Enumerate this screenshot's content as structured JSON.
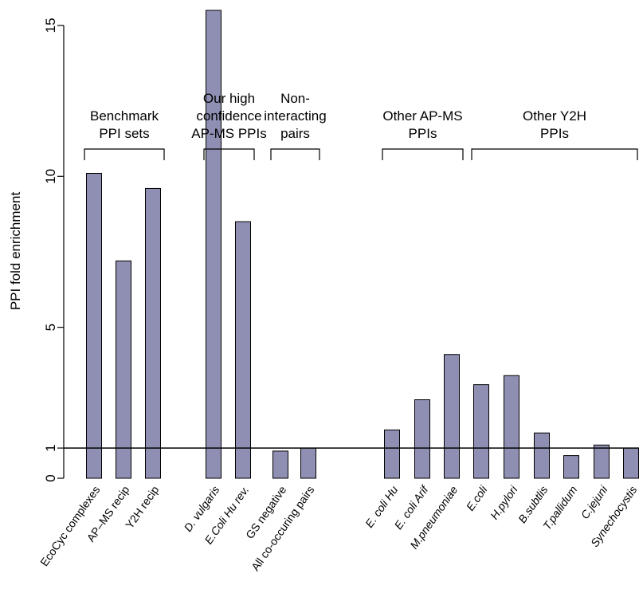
{
  "chart_data": {
    "type": "bar",
    "ylabel": "PPI fold enrichment",
    "ylim": [
      0,
      15.5
    ],
    "yticks": [
      0,
      1,
      5,
      10,
      15
    ],
    "reference_line": 1,
    "bar_color": "#8f8fb3",
    "categories": [
      {
        "label": "EcoCyc complexes",
        "value": 10.1,
        "italic": false
      },
      {
        "label": "AP–MS recip",
        "value": 7.2,
        "italic": false
      },
      {
        "label": "Y2H recip",
        "value": 9.6,
        "italic": false
      },
      {
        "label": "D. vulgaris",
        "value": 15.5,
        "italic": true
      },
      {
        "label": "E.Coli Hu rev.",
        "value": 8.5,
        "italic": true
      },
      {
        "label": "GS negative",
        "value": 0.9,
        "italic": false
      },
      {
        "label": "All co-occuring pairs",
        "value": 1.0,
        "italic": false
      },
      {
        "label": "E. coli Hu",
        "value": 1.6,
        "italic": true
      },
      {
        "label": "E. coli Arif",
        "value": 2.6,
        "italic": true
      },
      {
        "label": "M.pneumoniae",
        "value": 4.1,
        "italic": true
      },
      {
        "label": "E.coli",
        "value": 3.1,
        "italic": true
      },
      {
        "label": "H.pylori",
        "value": 3.4,
        "italic": true
      },
      {
        "label": "B.subtlis",
        "value": 1.5,
        "italic": true
      },
      {
        "label": "T.pallidum",
        "value": 0.75,
        "italic": true
      },
      {
        "label": "C.jejuni",
        "value": 1.1,
        "italic": true
      },
      {
        "label": "Synechocystis",
        "value": 1.0,
        "italic": true
      }
    ],
    "groups": [
      {
        "lines": [
          "Benchmark",
          "PPI sets"
        ],
        "first": 0,
        "last": 2
      },
      {
        "lines": [
          "Our high",
          "confidence",
          "AP-MS PPIs"
        ],
        "first": 3,
        "last": 4
      },
      {
        "lines": [
          "Non-",
          "interacting",
          "pairs"
        ],
        "first": 5,
        "last": 6
      },
      {
        "lines": [
          "Other AP-MS",
          "PPIs"
        ],
        "first": 7,
        "last": 9
      },
      {
        "lines": [
          "Other Y2H",
          "PPIs"
        ],
        "first": 10,
        "last": 15
      }
    ]
  }
}
